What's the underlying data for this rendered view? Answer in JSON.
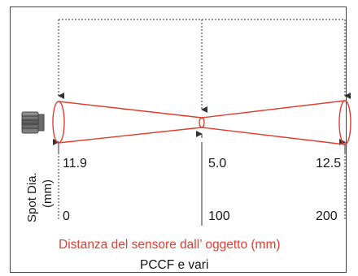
{
  "diagram": {
    "spot_label": "Spot Dia.",
    "spot_unit": "(mm)",
    "spot_diameters": [
      "11.9",
      "5.0",
      "12.5"
    ],
    "distances": [
      "0",
      "100",
      "200"
    ],
    "xlabel": "Distanza del sensore dall’ oggetto (mm)",
    "caption": "PCCF e vari",
    "beam_color": "#e03c2e",
    "line_color": "#333333",
    "sensor_icon": "sensor-head-icon"
  }
}
